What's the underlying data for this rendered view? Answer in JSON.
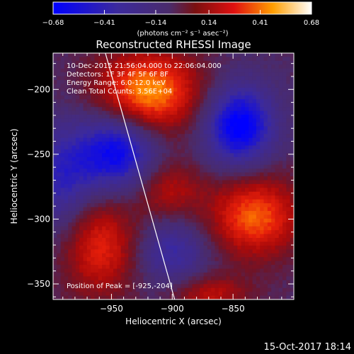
{
  "chart_data": {
    "type": "heatmap",
    "title": "Reconstructed RHESSI Image",
    "xlabel": "Heliocentric X (arcsec)",
    "ylabel": "Heliocentric Y (arcsec)",
    "xlim": [
      -998,
      -800
    ],
    "ylim": [
      -362,
      -172
    ],
    "x_ticks": [
      -950,
      -900,
      -850
    ],
    "x_tick_labels": [
      "−950",
      "−900",
      "−850"
    ],
    "y_ticks": [
      -200,
      -250,
      -300,
      -350
    ],
    "y_tick_labels": [
      "−200",
      "−250",
      "−300",
      "−350"
    ],
    "colorbar": {
      "min": -0.68,
      "max": 0.68,
      "ticks": [
        -0.68,
        -0.41,
        -0.14,
        0.14,
        0.41,
        0.68
      ],
      "tick_labels": [
        "−0.68",
        "−0.41",
        "−0.14",
        "0.14",
        "0.41",
        "0.68"
      ],
      "unit_label": "(photons cm⁻² s⁻¹ asec⁻²)"
    },
    "blobs": [
      {
        "x": -920,
        "y": -202,
        "value": 0.62,
        "sx": 30,
        "sy": 22
      },
      {
        "x": -832,
        "y": -298,
        "value": 0.52,
        "sx": 26,
        "sy": 22
      },
      {
        "x": -960,
        "y": -320,
        "value": 0.42,
        "sx": 22,
        "sy": 28
      },
      {
        "x": -903,
        "y": -278,
        "value": 0.28,
        "sx": 20,
        "sy": 16
      },
      {
        "x": -868,
        "y": -358,
        "value": 0.3,
        "sx": 22,
        "sy": 10
      },
      {
        "x": -945,
        "y": -248,
        "value": -0.55,
        "sx": 22,
        "sy": 22
      },
      {
        "x": -845,
        "y": -228,
        "value": -0.6,
        "sx": 20,
        "sy": 22
      },
      {
        "x": -990,
        "y": -270,
        "value": -0.35,
        "sx": 20,
        "sy": 30
      },
      {
        "x": -900,
        "y": -325,
        "value": -0.3,
        "sx": 20,
        "sy": 18
      }
    ],
    "limb_line": {
      "x1": -955,
      "y1": -172,
      "x2": -898,
      "y2": -362
    },
    "annotations": [
      "10-Dec-2015 21:56:04.000 to 22:06:04.000",
      "Detectors: 1F 3F 4F 5F 6F 8F",
      "Energy Range: 6.0-12.0 keV",
      "Clean   Total Counts: 3.56E+04"
    ],
    "peak_label": "Position of Peak = [-925,-204]",
    "timestamp": "15-Oct-2017 18:14"
  }
}
